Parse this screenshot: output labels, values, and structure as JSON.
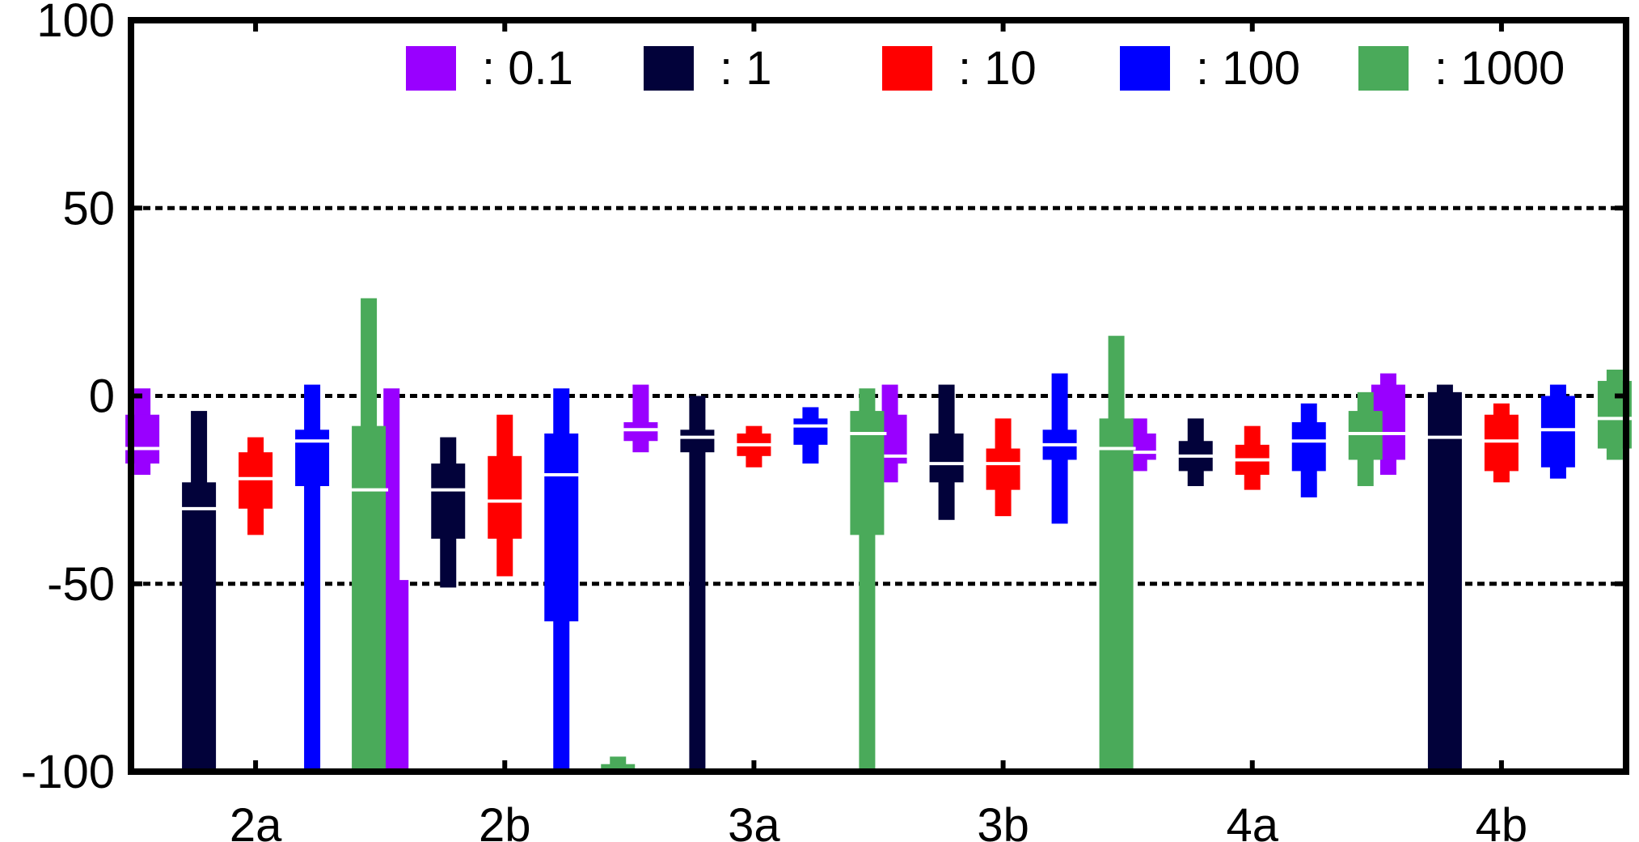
{
  "chart_data": {
    "type": "box",
    "categories": [
      "2a",
      "2b",
      "3a",
      "3b",
      "4a",
      "4b"
    ],
    "ylim": [
      -100,
      100
    ],
    "yticks": [
      100,
      50,
      0,
      -50,
      -100
    ],
    "ytick_labels": [
      "100",
      "50",
      "0",
      "-50",
      "-100"
    ],
    "grid": "horizontal dotted at 50, 0, -50",
    "legend_placement": "top-right",
    "series": [
      {
        "name": "0.1",
        "legend_text": ": 0.1",
        "color": "#9900ff",
        "boxes": [
          {
            "wmin": -21,
            "q1": -18,
            "median": -14,
            "q3": -5,
            "wmax": 2
          },
          {
            "wmin": -100,
            "q1": -100,
            "median": -100,
            "q3": -49,
            "wmax": 2
          },
          {
            "wmin": -15,
            "q1": -12,
            "median": -9,
            "q3": -7,
            "wmax": 3
          },
          {
            "wmin": -23,
            "q1": -18,
            "median": -16,
            "q3": -5,
            "wmax": 3
          },
          {
            "wmin": -20,
            "q1": -17,
            "median": -15,
            "q3": -10,
            "wmax": -6
          },
          {
            "wmin": -21,
            "q1": -17,
            "median": -10,
            "q3": 3,
            "wmax": 6
          }
        ]
      },
      {
        "name": "1",
        "legend_text": ": 1",
        "color": "#02023a",
        "boxes": [
          {
            "wmin": -100,
            "q1": -100,
            "median": -30,
            "q3": -23,
            "wmax": -4
          },
          {
            "wmin": -51,
            "q1": -38,
            "median": -25,
            "q3": -18,
            "wmax": -11
          },
          {
            "wmin": -100,
            "q1": -15,
            "median": -11,
            "q3": -9,
            "wmax": 0
          },
          {
            "wmin": -33,
            "q1": -23,
            "median": -18,
            "q3": -10,
            "wmax": 3
          },
          {
            "wmin": -24,
            "q1": -20,
            "median": -16,
            "q3": -12,
            "wmax": -6
          },
          {
            "wmin": -100,
            "q1": -100,
            "median": -11,
            "q3": 1,
            "wmax": 3
          }
        ]
      },
      {
        "name": "10",
        "legend_text": ": 10",
        "color": "#ff0000",
        "boxes": [
          {
            "wmin": -37,
            "q1": -30,
            "median": -22,
            "q3": -15,
            "wmax": -11
          },
          {
            "wmin": -48,
            "q1": -38,
            "median": -28,
            "q3": -16,
            "wmax": -5
          },
          {
            "wmin": -19,
            "q1": -16,
            "median": -13,
            "q3": -10,
            "wmax": -8
          },
          {
            "wmin": -32,
            "q1": -25,
            "median": -18,
            "q3": -14,
            "wmax": -6
          },
          {
            "wmin": -25,
            "q1": -21,
            "median": -17,
            "q3": -13,
            "wmax": -8
          },
          {
            "wmin": -23,
            "q1": -20,
            "median": -12,
            "q3": -5,
            "wmax": -2
          }
        ]
      },
      {
        "name": "100",
        "legend_text": ": 100",
        "color": "#0000ff",
        "boxes": [
          {
            "wmin": -100,
            "q1": -24,
            "median": -12,
            "q3": -9,
            "wmax": 3
          },
          {
            "wmin": -100,
            "q1": -60,
            "median": -21,
            "q3": -10,
            "wmax": 2
          },
          {
            "wmin": -18,
            "q1": -13,
            "median": -8,
            "q3": -6,
            "wmax": -3
          },
          {
            "wmin": -34,
            "q1": -17,
            "median": -13,
            "q3": -9,
            "wmax": 6
          },
          {
            "wmin": -27,
            "q1": -20,
            "median": -12,
            "q3": -7,
            "wmax": -2
          },
          {
            "wmin": -22,
            "q1": -19,
            "median": -9,
            "q3": 0,
            "wmax": 3
          }
        ]
      },
      {
        "name": "1000",
        "legend_text": ": 1000",
        "color": "#4aaa5a",
        "boxes": [
          {
            "wmin": -100,
            "q1": -100,
            "median": -25,
            "q3": -8,
            "wmax": 26
          },
          {
            "wmin": -100,
            "q1": -100,
            "median": -100,
            "q3": -98,
            "wmax": -96
          },
          {
            "wmin": -100,
            "q1": -37,
            "median": -10,
            "q3": -4,
            "wmax": 2
          },
          {
            "wmin": -100,
            "q1": -100,
            "median": -14,
            "q3": -6,
            "wmax": 16
          },
          {
            "wmin": -24,
            "q1": -17,
            "median": -10,
            "q3": -4,
            "wmax": 1
          },
          {
            "wmin": -17,
            "q1": -14,
            "median": -6,
            "q3": 4,
            "wmax": 7
          }
        ]
      }
    ]
  }
}
